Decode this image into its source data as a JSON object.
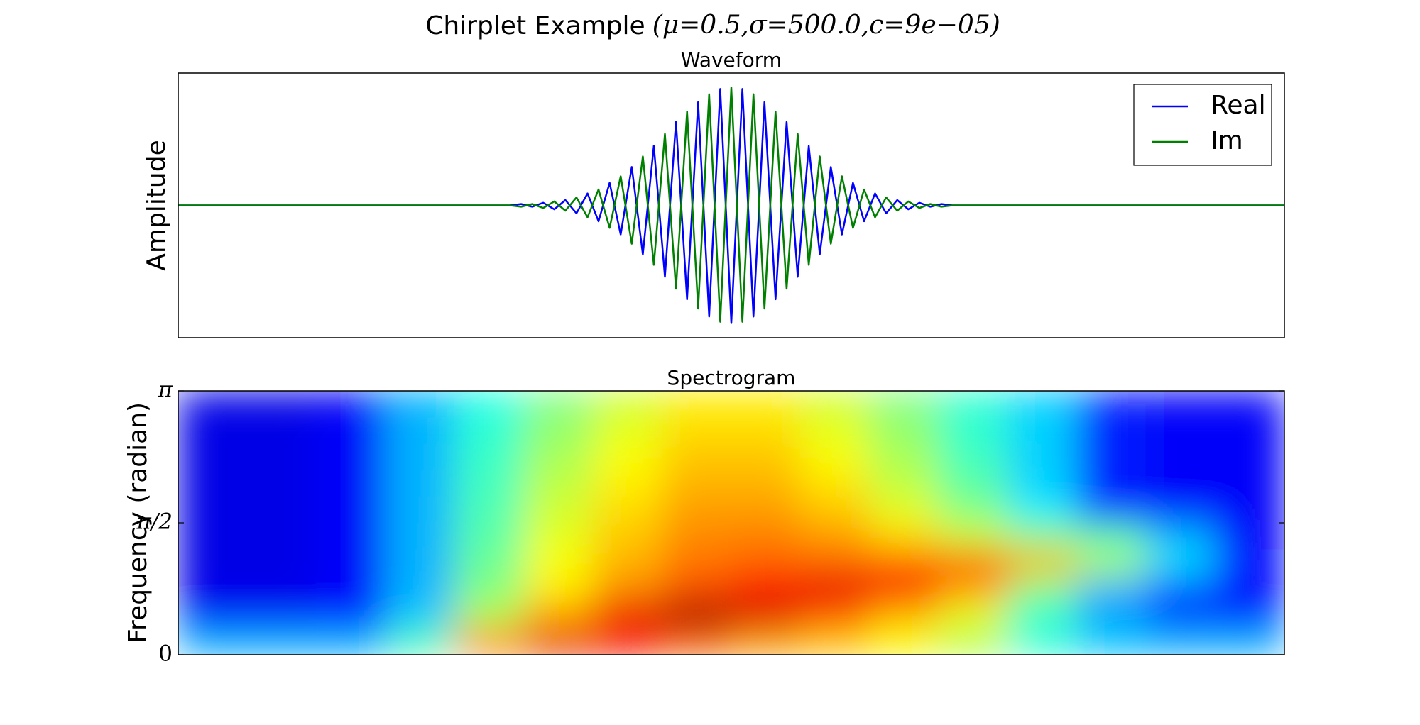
{
  "title": "Chirplet Example",
  "title_math": "(μ=0.5,σ=500.0,c=9e−05)",
  "chart_data": [
    {
      "type": "line",
      "title": "Waveform",
      "ylabel": "Amplitude",
      "xlim": [
        0,
        1
      ],
      "ylim": [
        -1,
        1
      ],
      "legend": "upper right",
      "x": [
        0,
        0.3,
        0.31,
        0.32,
        0.33,
        0.34,
        0.35,
        0.36,
        0.37,
        0.38,
        0.39,
        0.4,
        0.41,
        0.42,
        0.43,
        0.44,
        0.45,
        0.46,
        0.47,
        0.48,
        0.49,
        0.5,
        0.51,
        0.52,
        0.53,
        0.54,
        0.55,
        0.56,
        0.57,
        0.58,
        0.59,
        0.6,
        0.61,
        0.62,
        0.63,
        0.64,
        0.65,
        0.66,
        0.67,
        0.68,
        0.69,
        0.7,
        1
      ],
      "series": [
        {
          "name": "Real",
          "color": "#0000ff",
          "values": [
            0,
            0,
            0.01,
            -0.01,
            0.02,
            -0.03,
            0.04,
            -0.06,
            0.09,
            -0.12,
            0.17,
            -0.22,
            0.29,
            -0.37,
            0.45,
            -0.54,
            0.63,
            -0.71,
            0.78,
            -0.84,
            0.88,
            -0.89,
            0.88,
            -0.84,
            0.78,
            -0.71,
            0.63,
            -0.54,
            0.45,
            -0.37,
            0.29,
            -0.22,
            0.17,
            -0.12,
            0.09,
            -0.06,
            0.04,
            -0.03,
            0.02,
            -0.01,
            0.01,
            0,
            0
          ]
        },
        {
          "name": "Im",
          "color": "#008000",
          "values": [
            0,
            0,
            -0.01,
            0.01,
            -0.02,
            0.03,
            -0.04,
            0.06,
            -0.09,
            0.12,
            -0.17,
            0.22,
            -0.29,
            0.37,
            -0.45,
            0.54,
            -0.63,
            0.71,
            -0.78,
            0.84,
            -0.88,
            0.89,
            -0.88,
            0.84,
            -0.78,
            0.71,
            -0.63,
            0.54,
            -0.45,
            0.37,
            -0.29,
            0.22,
            -0.17,
            0.12,
            -0.09,
            0.06,
            -0.04,
            0.03,
            -0.02,
            0.01,
            -0.01,
            0,
            0
          ]
        }
      ]
    },
    {
      "type": "heatmap",
      "title": "Spectrogram",
      "ylabel": "Frequency (radian)",
      "ylim": [
        0,
        3.14159
      ],
      "yticks": [
        0,
        {
          "value": 1.5708,
          "label": "π/2"
        },
        {
          "value": 3.14159,
          "label": "π"
        }
      ],
      "colormap": "jet",
      "zlim": [
        0,
        1
      ],
      "z": [
        [
          0.3,
          0.3,
          0.3,
          0.45,
          0.75,
          0.9,
          0.85,
          0.78,
          0.72,
          0.68,
          0.62,
          0.55,
          0.42,
          0.32,
          0.3,
          0.3
        ],
        [
          0.12,
          0.12,
          0.14,
          0.32,
          0.55,
          0.72,
          0.9,
          0.98,
          0.92,
          0.8,
          0.7,
          0.6,
          0.42,
          0.28,
          0.18,
          0.15
        ],
        [
          0.1,
          0.1,
          0.12,
          0.3,
          0.5,
          0.64,
          0.74,
          0.8,
          0.86,
          0.9,
          0.88,
          0.72,
          0.5,
          0.3,
          0.2,
          0.14
        ],
        [
          0.1,
          0.1,
          0.12,
          0.3,
          0.48,
          0.62,
          0.7,
          0.76,
          0.78,
          0.78,
          0.78,
          0.8,
          0.7,
          0.55,
          0.35,
          0.14
        ],
        [
          0.1,
          0.1,
          0.12,
          0.3,
          0.46,
          0.6,
          0.68,
          0.74,
          0.75,
          0.72,
          0.66,
          0.58,
          0.5,
          0.45,
          0.3,
          0.12
        ],
        [
          0.1,
          0.1,
          0.12,
          0.3,
          0.45,
          0.58,
          0.66,
          0.72,
          0.72,
          0.68,
          0.6,
          0.5,
          0.36,
          0.16,
          0.12,
          0.12
        ],
        [
          0.1,
          0.1,
          0.12,
          0.3,
          0.44,
          0.56,
          0.64,
          0.7,
          0.7,
          0.65,
          0.56,
          0.46,
          0.33,
          0.15,
          0.12,
          0.12
        ],
        [
          0.1,
          0.1,
          0.12,
          0.3,
          0.43,
          0.54,
          0.62,
          0.68,
          0.68,
          0.62,
          0.54,
          0.44,
          0.33,
          0.15,
          0.12,
          0.12
        ],
        [
          0.1,
          0.1,
          0.12,
          0.3,
          0.42,
          0.52,
          0.6,
          0.66,
          0.66,
          0.6,
          0.52,
          0.42,
          0.33,
          0.15,
          0.12,
          0.12
        ],
        [
          0.1,
          0.1,
          0.12,
          0.3,
          0.4,
          0.5,
          0.58,
          0.64,
          0.64,
          0.58,
          0.5,
          0.42,
          0.33,
          0.15,
          0.12,
          0.12
        ]
      ]
    }
  ]
}
